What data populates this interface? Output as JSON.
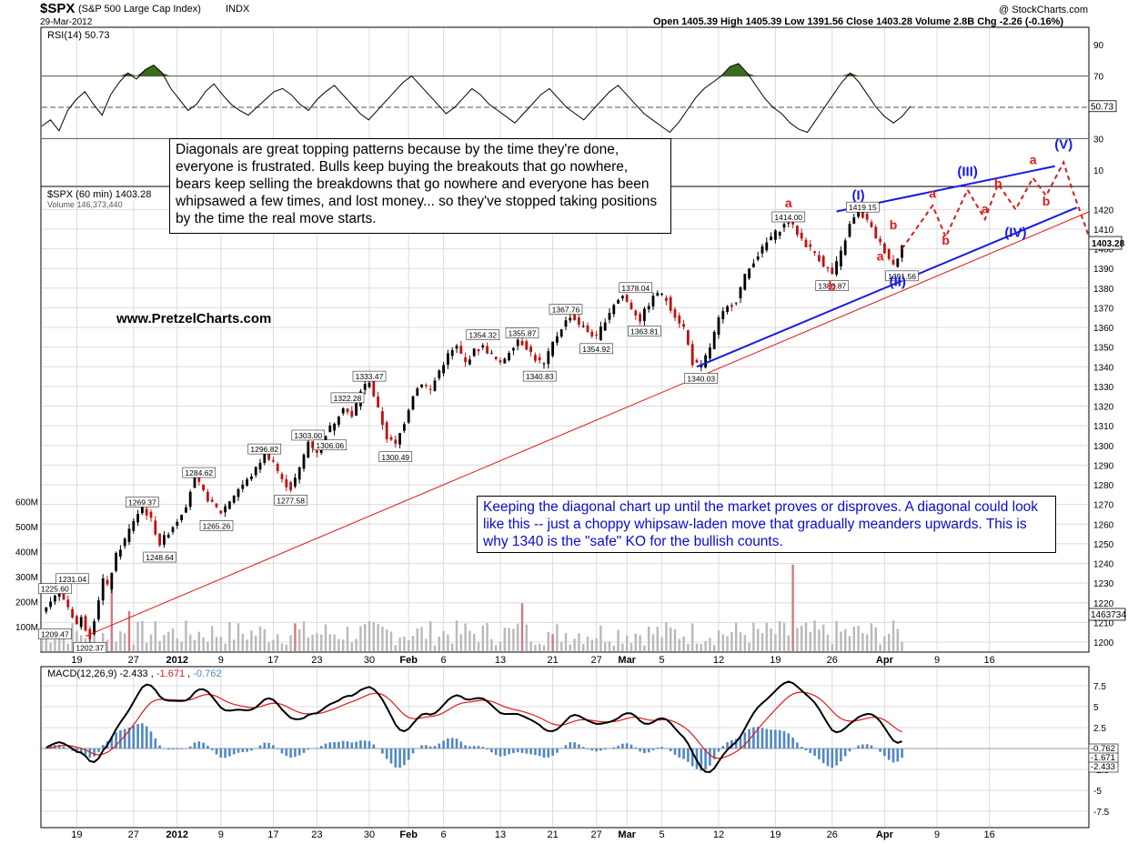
{
  "header": {
    "symbol": "$SPX",
    "name": "(S&P 500 Large Cap Index)",
    "exchange": "INDX",
    "date": "29-Mar-2012",
    "credit": "@ StockCharts.com",
    "quote": "Open 1405.39  High 1405.39  Low 1391.56  Close 1403.28  Volume 2.8B  Chg -2.26 (-0.16%)"
  },
  "annotations": {
    "note1": "Diagonals are great topping patterns because by the time they're done, everyone is frustrated.  Bulls keep buying the breakouts that go nowhere, bears keep selling the breakdowns that go nowhere and everyone has been whipsawed a few times, and lost money... so they've stopped taking positions by the time the real move starts.",
    "note2": "Keeping the diagonal chart up until the market proves or disproves.  A diagonal could look like this -- just a choppy whipsaw-laden move that gradually meanders upwards.  This is why 1340 is the \"safe\" KO for the bullish counts.",
    "site": "www.PretzelCharts.com"
  },
  "chart_data": [
    {
      "type": "line",
      "panel": "RSI",
      "legend": "RSI(14) 50.73",
      "ylim": [
        0,
        100
      ],
      "y_ticks": [
        10,
        30,
        70,
        90
      ],
      "reference_lines": [
        30,
        50,
        70
      ],
      "last_value": 50.73,
      "last_value_label": "50.73",
      "series": [
        {
          "values": [
            38,
            42,
            35,
            48,
            55,
            60,
            52,
            45,
            58,
            66,
            72,
            68,
            74,
            77,
            72,
            62,
            55,
            48,
            52,
            60,
            65,
            58,
            52,
            48,
            45,
            50,
            55,
            60,
            62,
            58,
            52,
            48,
            55,
            60,
            64,
            58,
            52,
            46,
            42,
            48,
            54,
            60,
            66,
            70,
            64,
            58,
            52,
            46,
            50,
            56,
            62,
            58,
            52,
            48,
            44,
            40,
            46,
            52,
            58,
            62,
            56,
            50,
            46,
            42,
            48,
            54,
            60,
            64,
            58,
            52,
            46,
            42,
            38,
            34,
            40,
            48,
            56,
            62,
            66,
            70,
            76,
            78,
            72,
            64,
            56,
            50,
            46,
            40,
            36,
            34,
            42,
            50,
            58,
            66,
            72,
            66,
            58,
            50,
            44,
            40,
            44,
            50.73
          ]
        }
      ]
    },
    {
      "type": "candlestick",
      "panel": "price",
      "legend": "$SPX (60 min) 1403.28",
      "volume_legend": "Volume 146,373,440",
      "ylim": [
        1195,
        1440
      ],
      "y_ticks": [
        1200,
        1210,
        1220,
        1230,
        1240,
        1250,
        1260,
        1270,
        1280,
        1290,
        1300,
        1310,
        1320,
        1330,
        1340,
        1350,
        1360,
        1370,
        1380,
        1390,
        1400,
        1410,
        1420
      ],
      "x_tick_labels": [
        "19",
        "27",
        "2012",
        "9",
        "17",
        "23",
        "30",
        "Feb",
        "6",
        "13",
        "21",
        "27",
        "Mar",
        "5",
        "12",
        "19",
        "26",
        "Apr",
        "9",
        "16"
      ],
      "volume_ticks": [
        "100M",
        "200M",
        "300M",
        "400M",
        "500M",
        "600M"
      ],
      "last_close_label": "1403.28",
      "last_volume_label": "1463734",
      "close_path": [
        [
          0,
          1215
        ],
        [
          2,
          1222
        ],
        [
          4,
          1226
        ],
        [
          6,
          1218
        ],
        [
          8,
          1209
        ],
        [
          9,
          1212
        ],
        [
          10,
          1207
        ],
        [
          11,
          1203
        ],
        [
          12,
          1212
        ],
        [
          14,
          1232
        ],
        [
          15,
          1228
        ],
        [
          17,
          1244
        ],
        [
          19,
          1252
        ],
        [
          21,
          1262
        ],
        [
          23,
          1269
        ],
        [
          25,
          1262
        ],
        [
          27,
          1250
        ],
        [
          29,
          1256
        ],
        [
          31,
          1262
        ],
        [
          33,
          1270
        ],
        [
          35,
          1284
        ],
        [
          37,
          1276
        ],
        [
          39,
          1270
        ],
        [
          41,
          1266
        ],
        [
          43,
          1272
        ],
        [
          45,
          1278
        ],
        [
          47,
          1282
        ],
        [
          49,
          1288
        ],
        [
          51,
          1296
        ],
        [
          53,
          1292
        ],
        [
          55,
          1282
        ],
        [
          57,
          1278
        ],
        [
          59,
          1288
        ],
        [
          61,
          1302
        ],
        [
          63,
          1297
        ],
        [
          65,
          1306
        ],
        [
          67,
          1312
        ],
        [
          69,
          1320
        ],
        [
          71,
          1314
        ],
        [
          73,
          1328
        ],
        [
          75,
          1333
        ],
        [
          77,
          1318
        ],
        [
          79,
          1304
        ],
        [
          81,
          1300
        ],
        [
          83,
          1312
        ],
        [
          85,
          1326
        ],
        [
          87,
          1332
        ],
        [
          89,
          1328
        ],
        [
          91,
          1338
        ],
        [
          93,
          1346
        ],
        [
          95,
          1350
        ],
        [
          97,
          1342
        ],
        [
          99,
          1348
        ],
        [
          101,
          1350
        ],
        [
          103,
          1346
        ],
        [
          105,
          1341
        ],
        [
          107,
          1348
        ],
        [
          109,
          1354
        ],
        [
          111,
          1350
        ],
        [
          113,
          1344
        ],
        [
          115,
          1341
        ],
        [
          117,
          1352
        ],
        [
          119,
          1360
        ],
        [
          121,
          1366
        ],
        [
          123,
          1362
        ],
        [
          125,
          1358
        ],
        [
          127,
          1355
        ],
        [
          129,
          1364
        ],
        [
          131,
          1372
        ],
        [
          133,
          1376
        ],
        [
          135,
          1370
        ],
        [
          137,
          1364
        ],
        [
          139,
          1372
        ],
        [
          141,
          1378
        ],
        [
          143,
          1374
        ],
        [
          145,
          1366
        ],
        [
          147,
          1360
        ],
        [
          149,
          1342
        ],
        [
          151,
          1340
        ],
        [
          153,
          1350
        ],
        [
          155,
          1364
        ],
        [
          157,
          1370
        ],
        [
          159,
          1374
        ],
        [
          161,
          1386
        ],
        [
          163,
          1394
        ],
        [
          165,
          1400
        ],
        [
          167,
          1406
        ],
        [
          169,
          1410
        ],
        [
          171,
          1414
        ],
        [
          173,
          1408
        ],
        [
          175,
          1402
        ],
        [
          177,
          1398
        ],
        [
          179,
          1392
        ],
        [
          181,
          1387
        ],
        [
          183,
          1398
        ],
        [
          185,
          1412
        ],
        [
          187,
          1419
        ],
        [
          189,
          1414
        ],
        [
          191,
          1406
        ],
        [
          193,
          1399
        ],
        [
          195,
          1392
        ],
        [
          196,
          1396
        ],
        [
          197,
          1403
        ]
      ],
      "wave_labels": [
        {
          "text": "(I)",
          "x": 187,
          "y": 1425,
          "color": "#1919e0"
        },
        {
          "text": "(II)",
          "x": 196,
          "y": 1381,
          "color": "#1919e0"
        },
        {
          "text": "(III)",
          "x": 212,
          "y": 1437,
          "color": "#1919e0"
        },
        {
          "text": "(IV)",
          "x": 223,
          "y": 1406,
          "color": "#1919e0"
        },
        {
          "text": "(V)",
          "x": 234,
          "y": 1451,
          "color": "#1919e0"
        },
        {
          "text": "a",
          "x": 171,
          "y": 1421,
          "color": "#e01919"
        },
        {
          "text": "b",
          "x": 181,
          "y": 1379,
          "color": "#e01919"
        },
        {
          "text": "a",
          "x": 192,
          "y": 1394,
          "color": "#e01919"
        },
        {
          "text": "b",
          "x": 195,
          "y": 1410,
          "color": "#e01919"
        },
        {
          "text": "a",
          "x": 204,
          "y": 1426,
          "color": "#e01919"
        },
        {
          "text": "b",
          "x": 207,
          "y": 1402,
          "color": "#e01919"
        },
        {
          "text": "a",
          "x": 216,
          "y": 1418,
          "color": "#e01919"
        },
        {
          "text": "b",
          "x": 219,
          "y": 1431,
          "color": "#e01919"
        },
        {
          "text": "a",
          "x": 227,
          "y": 1443,
          "color": "#e01919"
        },
        {
          "text": "b",
          "x": 230,
          "y": 1422,
          "color": "#e01919"
        }
      ],
      "value_labels": [
        {
          "text": "1209.47",
          "x": 3,
          "y": 1204
        },
        {
          "text": "1225.60",
          "x": 3,
          "y": 1227
        },
        {
          "text": "1231.04",
          "x": 7,
          "y": 1232
        },
        {
          "text": "1202.37",
          "x": 11,
          "y": 1197
        },
        {
          "text": "1269.37",
          "x": 23,
          "y": 1271
        },
        {
          "text": "1248.64",
          "x": 27,
          "y": 1243
        },
        {
          "text": "1265.26",
          "x": 40,
          "y": 1259
        },
        {
          "text": "1284.62",
          "x": 36,
          "y": 1286
        },
        {
          "text": "1277.58",
          "x": 57,
          "y": 1272
        },
        {
          "text": "1296.82",
          "x": 51,
          "y": 1298
        },
        {
          "text": "1303.00",
          "x": 61,
          "y": 1305
        },
        {
          "text": "1306.06",
          "x": 66,
          "y": 1300
        },
        {
          "text": "1322.28",
          "x": 70,
          "y": 1324
        },
        {
          "text": "1333.47",
          "x": 75,
          "y": 1335
        },
        {
          "text": "1300.49",
          "x": 81,
          "y": 1294
        },
        {
          "text": "1354.32",
          "x": 101,
          "y": 1356
        },
        {
          "text": "1355.87",
          "x": 110,
          "y": 1357
        },
        {
          "text": "1340.83",
          "x": 114,
          "y": 1335
        },
        {
          "text": "1367.76",
          "x": 120,
          "y": 1369
        },
        {
          "text": "1354.92",
          "x": 127,
          "y": 1349
        },
        {
          "text": "1378.04",
          "x": 136,
          "y": 1380
        },
        {
          "text": "1363.81",
          "x": 138,
          "y": 1358
        },
        {
          "text": "1340.03",
          "x": 151,
          "y": 1334
        },
        {
          "text": "1414.00",
          "x": 171,
          "y": 1416
        },
        {
          "text": "1386.87",
          "x": 181,
          "y": 1381
        },
        {
          "text": "1419.15",
          "x": 188,
          "y": 1421
        },
        {
          "text": "1391.56",
          "x": 197,
          "y": 1386
        }
      ],
      "trendlines": [
        {
          "color": "#1919e0",
          "points": [
            [
              150,
              1340
            ],
            [
              237,
              1421
            ]
          ]
        },
        {
          "color": "#1919e0",
          "points": [
            [
              182,
              1419
            ],
            [
              232,
              1442
            ]
          ]
        },
        {
          "color": "#e01919",
          "points": [
            [
              10,
              1203
            ],
            [
              240,
              1419
            ]
          ]
        }
      ],
      "projection": {
        "color": "#e01919",
        "points": [
          [
            197,
            1400
          ],
          [
            204,
            1422
          ],
          [
            207,
            1406
          ],
          [
            212,
            1430
          ],
          [
            216,
            1415
          ],
          [
            219,
            1433
          ],
          [
            223,
            1420
          ],
          [
            227,
            1436
          ],
          [
            230,
            1427
          ],
          [
            234,
            1444
          ],
          [
            236,
            1430
          ],
          [
            240,
            1405
          ]
        ]
      },
      "volume_spikes": [
        [
          16,
          400
        ],
        [
          20,
          260
        ],
        [
          58,
          180
        ],
        [
          110,
          310
        ],
        [
          117,
          110
        ],
        [
          172,
          560
        ]
      ]
    },
    {
      "type": "line",
      "panel": "MACD",
      "legend": "MACD(12,26,9) -2.433, -1.671, -0.762",
      "series_labels": [
        "-2.433",
        "-1.671",
        "-0.762"
      ],
      "ylim": [
        -9.5,
        9.5
      ],
      "y_ticks": [
        -7.5,
        -5,
        -2.5,
        0,
        2.5,
        5,
        7.5
      ],
      "last_values": {
        "macd": -2.433,
        "signal": -1.671,
        "histogram": -0.762
      }
    }
  ],
  "colors": {
    "axis": "#000000",
    "grid": "#dcdcdc",
    "up_candle": "#000000",
    "down_candle": "#c01010",
    "rsi_fill_over": "#3d6b1e",
    "rsi_fill_under": "#7a2b1e",
    "volume": "#b9b9b9",
    "volume_spike": "#d27a7a",
    "macd_line": "#000000",
    "signal_line": "#e01919",
    "histogram": "#4f87c8",
    "blue": "#1919e0",
    "red": "#e01919"
  }
}
